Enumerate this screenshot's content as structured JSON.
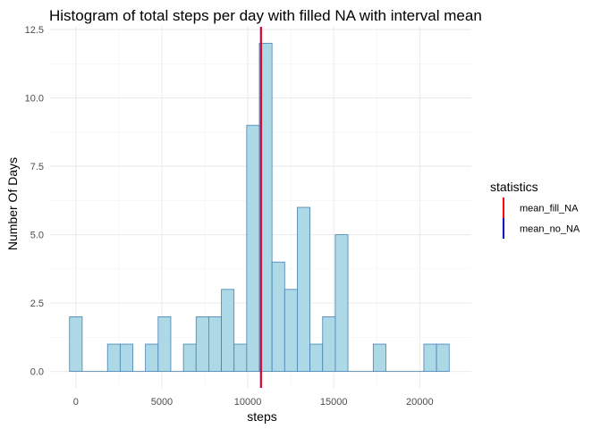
{
  "chart_data": {
    "type": "bar",
    "title": "Histogram of total steps per day with filled NA with interval mean",
    "xlabel": "steps",
    "ylabel": "Number Of Days",
    "xlim": [
      -1500,
      23000
    ],
    "ylim": [
      -0.6,
      12.6
    ],
    "x_ticks": [
      0,
      5000,
      10000,
      15000,
      20000
    ],
    "x_tick_labels": [
      "0",
      "5000",
      "10000",
      "15000",
      "20000"
    ],
    "y_ticks": [
      0,
      2.5,
      5,
      7.5,
      10,
      12.5
    ],
    "y_tick_labels": [
      "0.0",
      "2.5",
      "5.0",
      "7.5",
      "10.0",
      "12.5"
    ],
    "bin_width": 736,
    "bin_centers": [
      0,
      736,
      1472,
      2208,
      2944,
      3680,
      4416,
      5152,
      5888,
      6624,
      7360,
      8096,
      8832,
      9568,
      10304,
      11040,
      11776,
      12512,
      13248,
      13984,
      14720,
      15456,
      16192,
      16928,
      17664,
      18400,
      19136,
      19872,
      20608,
      21344
    ],
    "counts": [
      2,
      0,
      0,
      1,
      1,
      0,
      1,
      2,
      0,
      1,
      2,
      2,
      3,
      1,
      9,
      12,
      4,
      3,
      6,
      1,
      2,
      5,
      0,
      0,
      1,
      0,
      0,
      0,
      1,
      1
    ],
    "bar_fill": "#add8e6",
    "bar_stroke": "#4682b4",
    "grid": true,
    "vlines": [
      {
        "name": "mean_fill_NA",
        "x": 10766.19,
        "color": "#ff0000"
      },
      {
        "name": "mean_no_NA",
        "x": 10766.19,
        "color": "#0000ff"
      }
    ],
    "legend": {
      "title": "statistics",
      "placement": "right",
      "entries": [
        {
          "label": "mean_fill_NA",
          "color": "#ff0000"
        },
        {
          "label": "mean_no_NA",
          "color": "#0000cd"
        }
      ]
    }
  }
}
